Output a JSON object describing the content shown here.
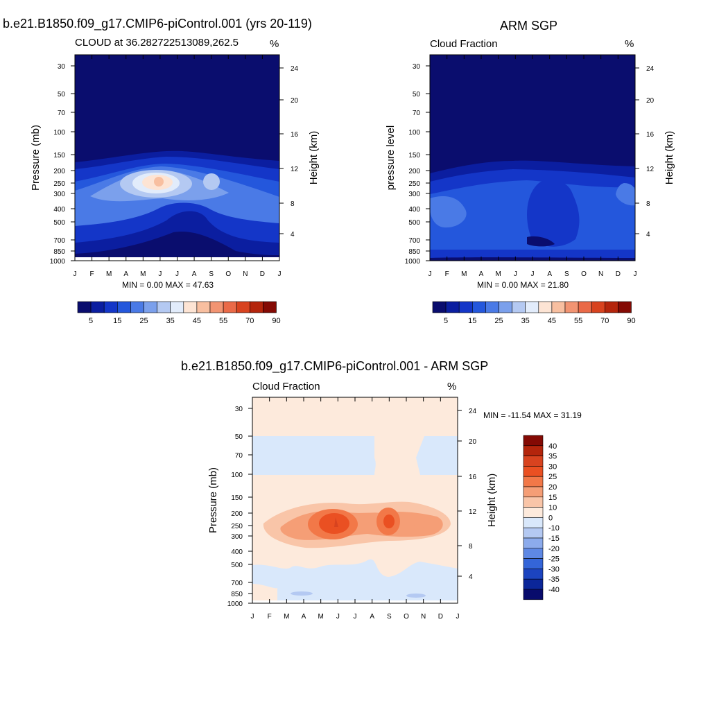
{
  "panels": {
    "model": {
      "title": "b.e21.B1850.f09_g17.CMIP6-piControl.001 (yrs 20-119)",
      "subtitle_left": "CLOUD at 36.282722513089,262.5",
      "subtitle_right": "%",
      "ylabel": "Pressure (mb)",
      "y2label": "Height (km)",
      "minmax": "MIN =   0.00 MAX =  47.63"
    },
    "obs": {
      "title": "ARM SGP",
      "subtitle_left": "Cloud Fraction",
      "subtitle_right": "%",
      "ylabel": "pressure level",
      "y2label": "Height (km)",
      "minmax": "MIN =   0.00 MAX =  21.80"
    },
    "diff": {
      "title": "b.e21.B1850.f09_g17.CMIP6-piControl.001 - ARM SGP",
      "subtitle_left": "Cloud Fraction",
      "subtitle_right": "%",
      "ylabel": "Pressure (mb)",
      "y2label": "Height (km)",
      "minmax": "MIN = -11.54 MAX =  31.19"
    }
  },
  "chart_data": [
    {
      "type": "heatmap",
      "title": "b.e21.B1850.f09_g17.CMIP6-piControl.001 (yrs 20-119)",
      "x_categories": [
        "J",
        "F",
        "M",
        "A",
        "M",
        "J",
        "J",
        "A",
        "S",
        "O",
        "N",
        "D",
        "J"
      ],
      "y_ticks_pressure_mb": [
        "30",
        "50",
        "70",
        "100",
        "150",
        "200",
        "250",
        "300",
        "400",
        "500",
        "700",
        "850",
        "1000"
      ],
      "y2_ticks_height_km": [
        "24",
        "20",
        "16",
        "12",
        "8",
        "4"
      ],
      "min": 0.0,
      "max": 47.63,
      "features": [
        {
          "x": 5,
          "p": 250,
          "value": 47
        },
        {
          "x": 8,
          "p": 250,
          "value": 35
        }
      ],
      "colorbar_labels": [
        "5",
        "15",
        "25",
        "35",
        "45",
        "55",
        "70",
        "90"
      ]
    },
    {
      "type": "heatmap",
      "title": "ARM SGP",
      "x_categories": [
        "J",
        "F",
        "M",
        "A",
        "M",
        "J",
        "J",
        "A",
        "S",
        "O",
        "N",
        "D",
        "J"
      ],
      "y_ticks_pressure_mb": [
        "30",
        "50",
        "70",
        "100",
        "150",
        "200",
        "250",
        "300",
        "400",
        "500",
        "700",
        "850",
        "1000"
      ],
      "y2_ticks_height_km": [
        "24",
        "20",
        "16",
        "12",
        "8",
        "4"
      ],
      "min": 0.0,
      "max": 21.8,
      "colorbar_labels": [
        "5",
        "15",
        "25",
        "35",
        "45",
        "55",
        "70",
        "90"
      ]
    },
    {
      "type": "heatmap",
      "title": "b.e21.B1850.f09_g17.CMIP6-piControl.001 - ARM SGP",
      "x_categories": [
        "J",
        "F",
        "M",
        "A",
        "M",
        "J",
        "J",
        "A",
        "S",
        "O",
        "N",
        "D",
        "J"
      ],
      "y_ticks_pressure_mb": [
        "30",
        "50",
        "70",
        "100",
        "150",
        "200",
        "250",
        "300",
        "400",
        "500",
        "700",
        "850",
        "1000"
      ],
      "y2_ticks_height_km": [
        "24",
        "20",
        "16",
        "12",
        "8",
        "4"
      ],
      "min": -11.54,
      "max": 31.19,
      "features": [
        {
          "x": 5,
          "p": 250,
          "value": 31
        },
        {
          "x": 8,
          "p": 250,
          "value": 27
        }
      ],
      "colorbar_labels": [
        "40",
        "35",
        "30",
        "25",
        "20",
        "15",
        "10",
        "0",
        "-10",
        "-15",
        "-20",
        "-25",
        "-30",
        "-35",
        "-40"
      ]
    }
  ],
  "colors": {
    "model_palette": [
      "#0a0d6e",
      "#0b1ea0",
      "#1436c8",
      "#2457dc",
      "#4a7ae6",
      "#7ba0ec",
      "#b4c9f2",
      "#e2ecfb",
      "#fde4d4",
      "#f8bfa0",
      "#f29472",
      "#ea6a48",
      "#d8431f",
      "#b4250c",
      "#840a04"
    ],
    "diff_palette_top_down": [
      "#840a04",
      "#b4250c",
      "#d8431f",
      "#ea5022",
      "#f27848",
      "#f59e76",
      "#f9c5a8",
      "#fdeadc",
      "#d9e8fb",
      "#b4c9f2",
      "#8cabec",
      "#5e88e4",
      "#3465d8",
      "#1c44c0",
      "#0b2699",
      "#080b6c"
    ]
  }
}
